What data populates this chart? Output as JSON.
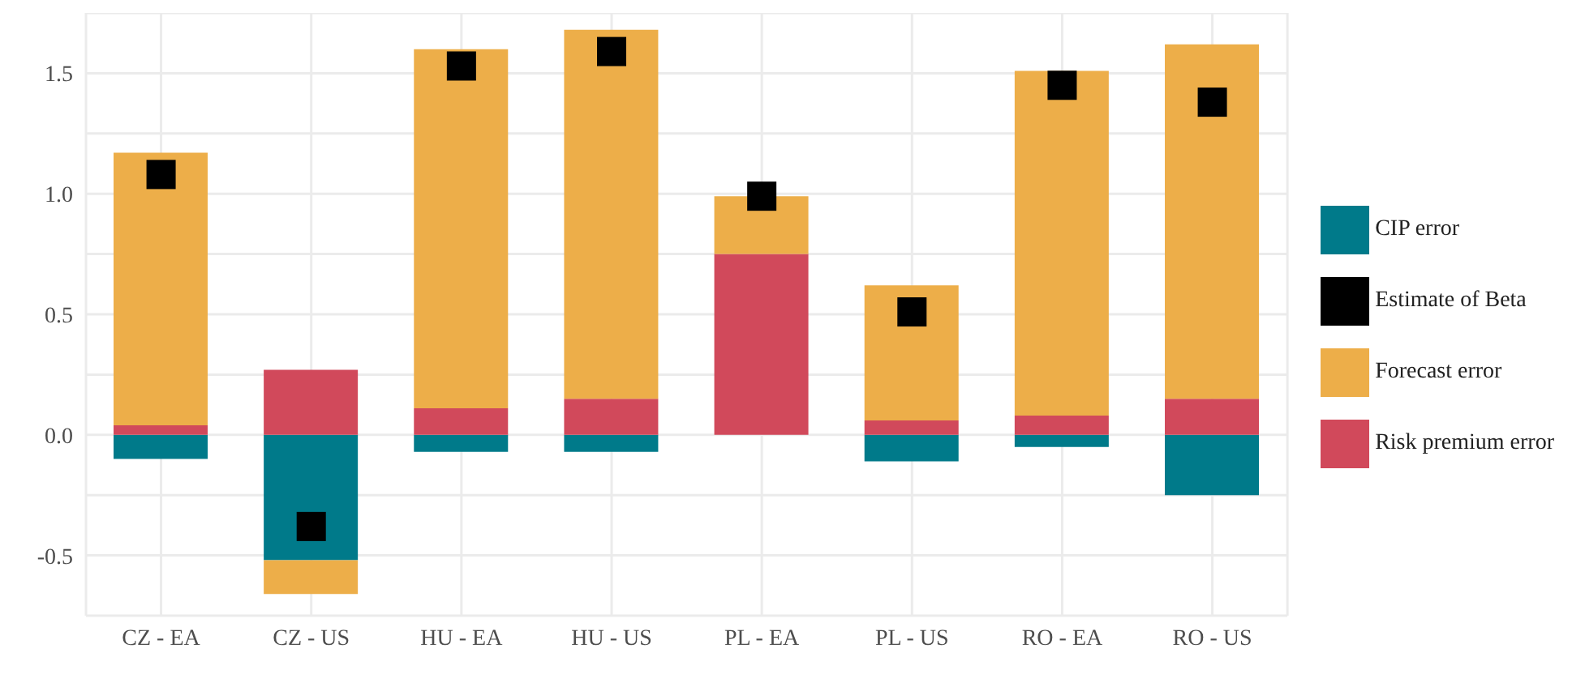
{
  "chart_data": {
    "type": "bar",
    "stacked": true,
    "categories": [
      "CZ - EA",
      "CZ - US",
      "HU - EA",
      "HU - US",
      "PL - EA",
      "PL - US",
      "RO - EA",
      "RO - US"
    ],
    "series": [
      {
        "name": "CIP error",
        "color": "#007a8a",
        "values": [
          -0.1,
          -0.52,
          -0.07,
          -0.07,
          0,
          -0.11,
          -0.05,
          -0.25
        ]
      },
      {
        "name": "Risk premium error",
        "color": "#d1495b",
        "values": [
          0.04,
          0.27,
          0.11,
          0.15,
          0.75,
          0.06,
          0.08,
          0.15
        ]
      },
      {
        "name": "Forecast error",
        "color": "#edae49",
        "values": [
          1.13,
          -0.14,
          1.49,
          1.53,
          0.24,
          0.56,
          1.43,
          1.47
        ]
      },
      {
        "name": "Estimate of Beta",
        "type": "scatter",
        "color": "#000000",
        "marker": "square",
        "x": [
          "CZ - EA",
          "CZ - US",
          "HU - EA",
          "HU - US",
          "PL - EA",
          "PL - US",
          "RO - EA",
          "RO - US"
        ],
        "values": [
          1.08,
          -0.38,
          1.53,
          1.59,
          0.99,
          0.51,
          1.45,
          1.38
        ]
      }
    ],
    "ylim": [
      -0.75,
      1.75
    ],
    "yticks": [
      {
        "value": -0.75,
        "label": null
      },
      -0.5,
      {
        "value": -0.25,
        "label": null
      },
      {
        "value": 0,
        "label": "0.0"
      },
      {
        "value": 0.25,
        "label": null
      },
      0.5,
      {
        "value": 0.75,
        "label": null
      },
      {
        "value": 1,
        "label": "1.0"
      },
      {
        "value": 1.25,
        "label": null
      },
      1.5,
      {
        "value": 1.75,
        "label": null
      }
    ],
    "grid": true,
    "legend": "right"
  }
}
